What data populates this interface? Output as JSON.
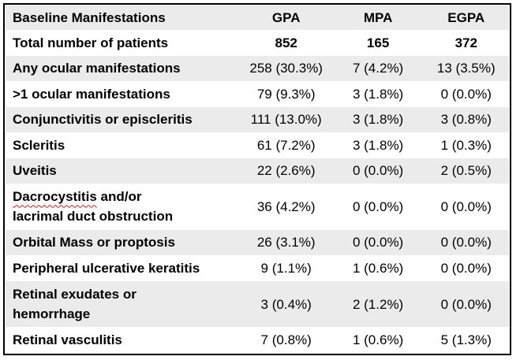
{
  "table": {
    "header": {
      "label": "Baseline Manifestations",
      "columns": [
        "GPA",
        "MPA",
        "EGPA"
      ]
    },
    "rows": [
      {
        "label": "Total number of patients",
        "values": [
          "852",
          "165",
          "372"
        ],
        "values_bold": true
      },
      {
        "label": "Any ocular manifestations",
        "values": [
          "258 (30.3%)",
          "7 (4.2%)",
          "13 (3.5%)"
        ]
      },
      {
        "label": ">1 ocular manifestations",
        "values": [
          "79 (9.3%)",
          "3 (1.8%)",
          "0 (0.0%)"
        ]
      },
      {
        "label": "Conjunctivitis or episcleritis",
        "values": [
          "111 (13.0%)",
          "3 (1.8%)",
          "3 (0.8%)"
        ]
      },
      {
        "label": "Scleritis",
        "values": [
          "61 (7.2%)",
          "3 (1.8%)",
          "1 (0.3%)"
        ]
      },
      {
        "label": "Uveitis",
        "values": [
          "22 (2.6%)",
          "0 (0.0%)",
          "2 (0.5%)"
        ]
      },
      {
        "label": "Dacrocystitis and/or\nlacrimal duct obstruction",
        "values": [
          "36 (4.2%)",
          "0 (0.0%)",
          "0 (0.0%)"
        ],
        "misspelled_word": "Dacrocystitis"
      },
      {
        "label": "Orbital Mass or proptosis",
        "values": [
          "26 (3.1%)",
          "0 (0.0%)",
          "0 (0.0%)"
        ]
      },
      {
        "label": "Peripheral ulcerative keratitis",
        "values": [
          "9 (1.1%)",
          "1 (0.6%)",
          "0 (0.0%)"
        ]
      },
      {
        "label": "Retinal exudates or\nhemorrhage",
        "values": [
          "3 (0.4%)",
          "2 (1.2%)",
          "0 (0.0%)"
        ]
      },
      {
        "label": "Retinal vasculitis",
        "values": [
          "7 (0.8%)",
          "1 (0.6%)",
          "5 (1.3%)"
        ]
      }
    ]
  },
  "colors": {
    "shaded_row": "#ebebeb",
    "border": "#000000",
    "spellcheck_underline": "#e01010",
    "text": "#000000"
  }
}
